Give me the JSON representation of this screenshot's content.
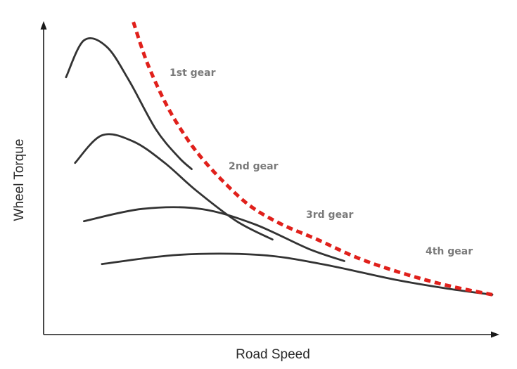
{
  "chart_data": {
    "type": "line",
    "title": "",
    "xlabel": "Road Speed",
    "ylabel": "Wheel Torque",
    "xlim": [
      0,
      100
    ],
    "ylim": [
      0,
      100
    ],
    "grid": false,
    "legend": "none",
    "series": [
      {
        "name": "1st gear",
        "style": "solid",
        "color": "#333333",
        "points": [
          [
            5,
            84
          ],
          [
            9,
            96
          ],
          [
            14,
            94
          ],
          [
            19,
            83
          ],
          [
            25,
            67
          ],
          [
            30,
            58
          ],
          [
            33,
            54
          ]
        ]
      },
      {
        "name": "2nd gear",
        "style": "solid",
        "color": "#333333",
        "points": [
          [
            7,
            56
          ],
          [
            13,
            65
          ],
          [
            20,
            63
          ],
          [
            27,
            56
          ],
          [
            34,
            47
          ],
          [
            43,
            37
          ],
          [
            51,
            31
          ]
        ]
      },
      {
        "name": "3rd gear",
        "style": "solid",
        "color": "#333333",
        "points": [
          [
            9,
            37
          ],
          [
            22,
            41
          ],
          [
            35,
            41
          ],
          [
            47,
            36
          ],
          [
            59,
            28
          ],
          [
            67,
            24
          ]
        ]
      },
      {
        "name": "4th gear",
        "style": "solid",
        "color": "#333333",
        "points": [
          [
            13,
            23
          ],
          [
            30,
            26
          ],
          [
            48,
            26
          ],
          [
            62,
            23
          ],
          [
            78,
            18
          ],
          [
            90,
            15
          ],
          [
            100,
            13
          ]
        ]
      },
      {
        "name": "",
        "style": "dashed",
        "color": "#e0201b",
        "points": [
          [
            20,
            102
          ],
          [
            23,
            89
          ],
          [
            27,
            76
          ],
          [
            31,
            66
          ],
          [
            35,
            58
          ],
          [
            40,
            50
          ],
          [
            46,
            42
          ],
          [
            53,
            36
          ],
          [
            61,
            31
          ],
          [
            70,
            25
          ],
          [
            80,
            20
          ],
          [
            90,
            16
          ],
          [
            100,
            13
          ]
        ]
      }
    ]
  }
}
